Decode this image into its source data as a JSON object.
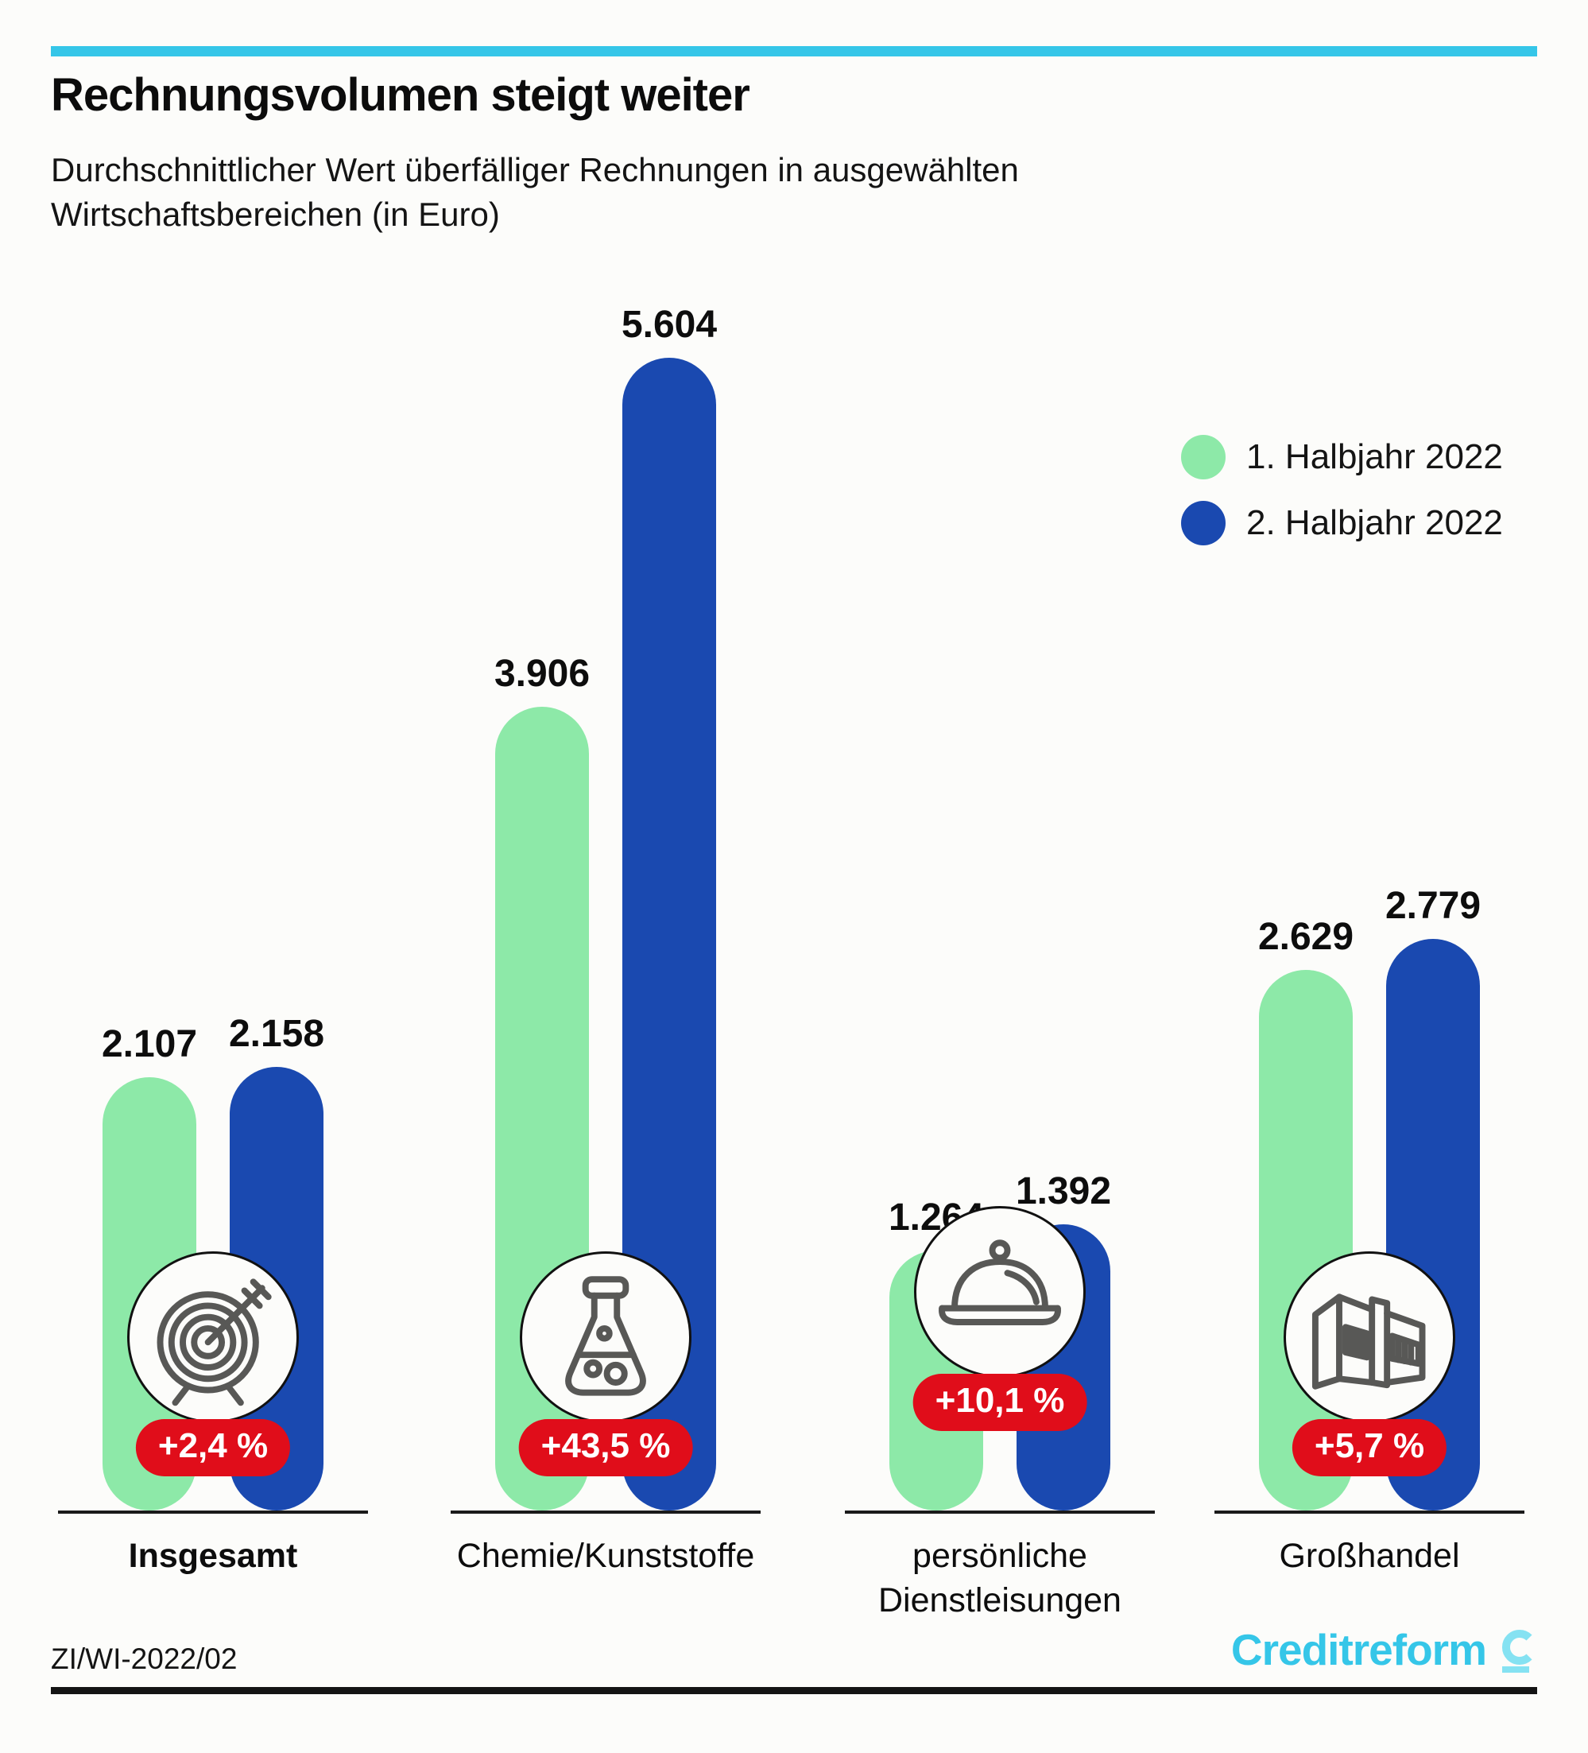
{
  "header": {
    "title": "Rechnungsvolumen steigt weiter",
    "subtitle_line1": "Durchschnittlicher Wert überfälliger Rechnungen in ausgewählten",
    "subtitle_line2": "Wirtschaftsbereichen (in Euro)"
  },
  "legend": {
    "items": [
      {
        "label": "1. Halbjahr 2022",
        "color": "#8de9a8"
      },
      {
        "label": "2. Halbjahr 2022",
        "color": "#1a49b0"
      }
    ]
  },
  "chart_data": {
    "type": "bar",
    "title": "Rechnungsvolumen steigt weiter",
    "subtitle": "Durchschnittlicher Wert überfälliger Rechnungen in ausgewählten Wirtschaftsbereichen (in Euro)",
    "unit": "Euro",
    "categories": [
      "Insgesamt",
      "Chemie/Kunststoffe",
      "persönliche Dienstleisungen",
      "Großhandel"
    ],
    "category_lines": [
      [
        "Insgesamt"
      ],
      [
        "Chemie/Kunststoffe"
      ],
      [
        "persönliche",
        "Dienstleisungen"
      ],
      [
        "Großhandel"
      ]
    ],
    "category_emphasis": [
      "bold",
      "normal",
      "normal",
      "normal"
    ],
    "series": [
      {
        "name": "1. Halbjahr 2022",
        "color": "#8de9a8",
        "values": [
          2107,
          3906,
          1264,
          2629
        ],
        "labels": [
          "2.107",
          "3.906",
          "1.264",
          "2.629"
        ]
      },
      {
        "name": "2. Halbjahr 2022",
        "color": "#1a49b0",
        "values": [
          2158,
          5604,
          1392,
          2779
        ],
        "labels": [
          "2.158",
          "5.604",
          "1.392",
          "2.779"
        ]
      }
    ],
    "change_badges": [
      "+2,4 %",
      "+43,5 %",
      "+10,1 %",
      "+5,7 %"
    ],
    "icons": [
      "target-icon",
      "flask-icon",
      "cloche-icon",
      "warehouse-icon"
    ],
    "ylim": [
      0,
      5604
    ],
    "grid": false,
    "legend_position": "top-right"
  },
  "footer": {
    "reference": "ZI/WI-2022/02",
    "brand": "Creditreform"
  },
  "colors": {
    "accent_cyan": "#35c6e8",
    "brand_mark_cyan": "#85e2f2",
    "badge_red": "#e00d1a",
    "bar_green": "#8de9a8",
    "bar_blue": "#1a49b0",
    "icon_stroke": "#585856",
    "text": "#111111"
  }
}
